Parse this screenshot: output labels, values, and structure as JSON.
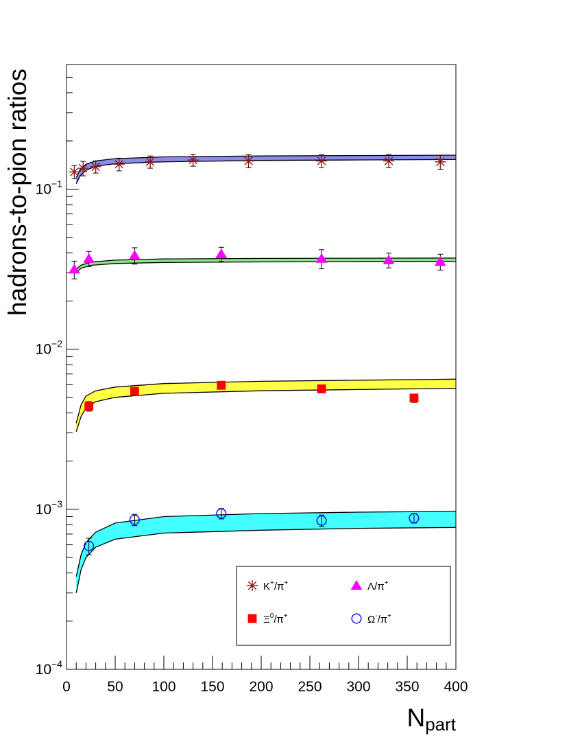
{
  "chart_data": {
    "type": "scatter",
    "title": "",
    "xlabel_main": "N",
    "xlabel_sub": "part",
    "ylabel": "hadrons-to-pion ratios",
    "xlim": [
      0,
      400
    ],
    "ylim": [
      0.0001,
      0.6
    ],
    "yscale": "log",
    "x_ticks": [
      "0",
      "50",
      "100",
      "150",
      "200",
      "250",
      "300",
      "350",
      "400"
    ],
    "y_ticks": [
      {
        "value": 0.1,
        "base": "10",
        "exp": "−1"
      },
      {
        "value": 0.01,
        "base": "10",
        "exp": "−2"
      },
      {
        "value": 0.001,
        "base": "10",
        "exp": "−3"
      },
      {
        "value": 0.0001,
        "base": "10",
        "exp": "−4"
      }
    ],
    "legend_position": "bottom-right",
    "series": [
      {
        "name_main": "K",
        "name_sup1": "+",
        "name_mid": "/π",
        "name_sup2": "+",
        "marker": "star",
        "color": "#8b1a1a",
        "band_color": "#8c8ce8",
        "points": [
          {
            "x": 8,
            "y": 0.128,
            "err": 0.012
          },
          {
            "x": 17,
            "y": 0.135,
            "err": 0.014
          },
          {
            "x": 30,
            "y": 0.138,
            "err": 0.012
          },
          {
            "x": 54,
            "y": 0.143,
            "err": 0.013
          },
          {
            "x": 86,
            "y": 0.148,
            "err": 0.013
          },
          {
            "x": 130,
            "y": 0.152,
            "err": 0.013
          },
          {
            "x": 187,
            "y": 0.15,
            "err": 0.014
          },
          {
            "x": 262,
            "y": 0.15,
            "err": 0.014
          },
          {
            "x": 331,
            "y": 0.15,
            "err": 0.014
          },
          {
            "x": 384,
            "y": 0.148,
            "err": 0.015
          }
        ],
        "band_upper": [
          [
            10,
            0.118
          ],
          [
            14,
            0.133
          ],
          [
            20,
            0.143
          ],
          [
            30,
            0.15
          ],
          [
            50,
            0.155
          ],
          [
            100,
            0.159
          ],
          [
            200,
            0.161
          ],
          [
            300,
            0.162
          ],
          [
            400,
            0.163
          ]
        ],
        "band_lower": [
          [
            10,
            0.108
          ],
          [
            14,
            0.121
          ],
          [
            20,
            0.131
          ],
          [
            30,
            0.139
          ],
          [
            50,
            0.144
          ],
          [
            100,
            0.148
          ],
          [
            200,
            0.151
          ],
          [
            300,
            0.152
          ],
          [
            400,
            0.153
          ]
        ]
      },
      {
        "name_main": "Λ",
        "name_sup1": "",
        "name_mid": "/π",
        "name_sup2": "+",
        "marker": "triangle",
        "color": "#ff00ff",
        "band_color": "#8be68b",
        "points": [
          {
            "x": 8,
            "y": 0.0315,
            "err": 0.004
          },
          {
            "x": 23,
            "y": 0.0368,
            "err": 0.004
          },
          {
            "x": 70,
            "y": 0.0385,
            "err": 0.0045
          },
          {
            "x": 159,
            "y": 0.0393,
            "err": 0.004
          },
          {
            "x": 262,
            "y": 0.0368,
            "err": 0.005
          },
          {
            "x": 331,
            "y": 0.036,
            "err": 0.0038
          },
          {
            "x": 384,
            "y": 0.0352,
            "err": 0.004
          }
        ],
        "band_upper": [
          [
            10,
            0.0315
          ],
          [
            15,
            0.0335
          ],
          [
            25,
            0.035
          ],
          [
            50,
            0.036
          ],
          [
            100,
            0.0366
          ],
          [
            200,
            0.0369
          ],
          [
            300,
            0.037
          ],
          [
            400,
            0.0371
          ]
        ],
        "band_lower": [
          [
            10,
            0.03
          ],
          [
            15,
            0.032
          ],
          [
            25,
            0.0334
          ],
          [
            50,
            0.0343
          ],
          [
            100,
            0.0348
          ],
          [
            200,
            0.0351
          ],
          [
            300,
            0.0352
          ],
          [
            400,
            0.0353
          ]
        ]
      },
      {
        "name_main": "Ξ",
        "name_sup1": "0",
        "name_mid": "/π",
        "name_sup2": "+",
        "marker": "square",
        "color": "#ff0000",
        "band_color": "#ffff44",
        "points": [
          {
            "x": 23,
            "y": 0.0044,
            "err": 0.0003
          },
          {
            "x": 70,
            "y": 0.00545,
            "err": 0.0003
          },
          {
            "x": 159,
            "y": 0.00595,
            "err": 0.0003
          },
          {
            "x": 262,
            "y": 0.00565,
            "err": 0.0003
          },
          {
            "x": 357,
            "y": 0.00495,
            "err": 0.0003
          }
        ],
        "band_upper": [
          [
            10,
            0.00345
          ],
          [
            15,
            0.0045
          ],
          [
            20,
            0.0051
          ],
          [
            30,
            0.0055
          ],
          [
            50,
            0.0058
          ],
          [
            100,
            0.0061
          ],
          [
            200,
            0.0063
          ],
          [
            300,
            0.0064
          ],
          [
            400,
            0.0065
          ]
        ],
        "band_lower": [
          [
            10,
            0.00305
          ],
          [
            15,
            0.0038
          ],
          [
            20,
            0.0043
          ],
          [
            30,
            0.0047
          ],
          [
            50,
            0.005
          ],
          [
            100,
            0.0053
          ],
          [
            200,
            0.0055
          ],
          [
            300,
            0.0056
          ],
          [
            400,
            0.0057
          ]
        ]
      },
      {
        "name_main": "Ω",
        "name_sup1": "-",
        "name_mid": "/π",
        "name_sup2": "+",
        "marker": "circle",
        "color": "#0000ff",
        "band_color": "#44ffff",
        "points": [
          {
            "x": 23,
            "y": 0.00059,
            "err": 7e-05
          },
          {
            "x": 70,
            "y": 0.00086,
            "err": 7e-05
          },
          {
            "x": 159,
            "y": 0.00094,
            "err": 7e-05
          },
          {
            "x": 262,
            "y": 0.00085,
            "err": 7e-05
          },
          {
            "x": 357,
            "y": 0.00088,
            "err": 6e-05
          }
        ],
        "band_upper": [
          [
            10,
            0.00038
          ],
          [
            15,
            0.00052
          ],
          [
            20,
            0.00062
          ],
          [
            30,
            0.00072
          ],
          [
            50,
            0.00082
          ],
          [
            100,
            0.0009
          ],
          [
            200,
            0.00094
          ],
          [
            300,
            0.00096
          ],
          [
            400,
            0.00097
          ]
        ],
        "band_lower": [
          [
            10,
            0.0003
          ],
          [
            15,
            0.00042
          ],
          [
            20,
            0.0005
          ],
          [
            30,
            0.00058
          ],
          [
            50,
            0.00065
          ],
          [
            100,
            0.00071
          ],
          [
            200,
            0.00074
          ],
          [
            300,
            0.00076
          ],
          [
            400,
            0.00077
          ]
        ]
      }
    ]
  }
}
